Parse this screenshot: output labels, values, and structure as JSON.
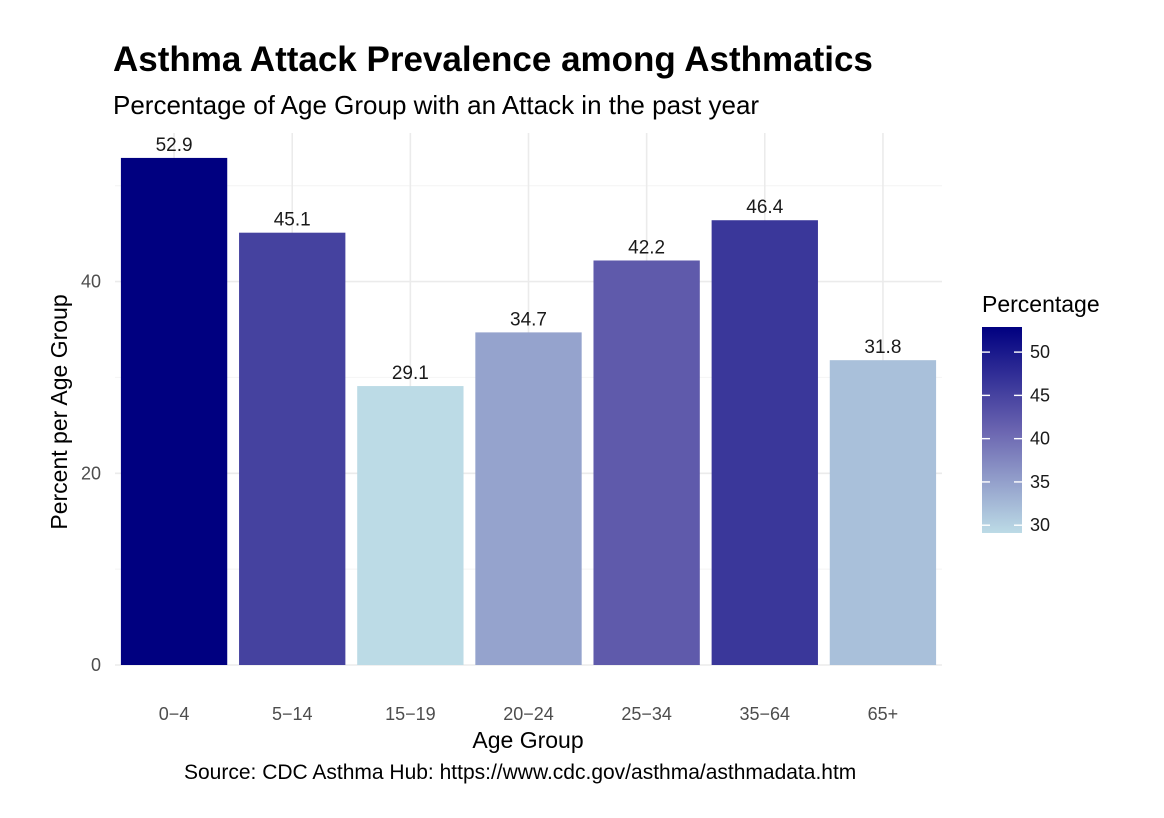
{
  "chart_data": {
    "type": "bar",
    "title": "Asthma Attack Prevalence among Asthmatics",
    "subtitle": "Percentage of Age Group with an Attack in the past year",
    "caption": "Source: CDC Asthma Hub: https://www.cdc.gov/asthma/asthmadata.htm",
    "xlabel": "Age Group",
    "ylabel": "Percent per Age Group",
    "categories": [
      "0−4",
      "5−14",
      "15−19",
      "20−24",
      "25−34",
      "35−64",
      "65+"
    ],
    "values": [
      52.9,
      45.1,
      29.1,
      34.7,
      42.2,
      46.4,
      31.8
    ],
    "value_labels": [
      "52.9",
      "45.1",
      "29.1",
      "34.7",
      "42.2",
      "46.4",
      "31.8"
    ],
    "ylim": [
      0,
      55.5
    ],
    "yticks": [
      0,
      20,
      40
    ],
    "ytick_labels": [
      "0",
      "20",
      "40"
    ],
    "grid": true,
    "legend": {
      "title": "Percentage",
      "placement": "right",
      "type": "colorbar",
      "range": [
        29.1,
        52.9
      ],
      "ticks": [
        30,
        35,
        40,
        45,
        50
      ],
      "tick_labels": [
        "30",
        "35",
        "40",
        "45",
        "50"
      ],
      "low_color": "#bcdbe6",
      "mid_color": "#6a64b0",
      "high_color": "#000080"
    }
  }
}
